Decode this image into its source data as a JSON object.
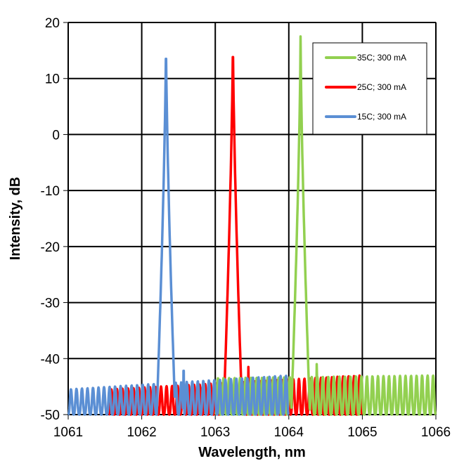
{
  "chart_data": {
    "type": "line",
    "title": "",
    "xlabel": "Wavelength, nm",
    "ylabel": "Intensity, dB",
    "xlim": [
      1061,
      1066
    ],
    "ylim": [
      -50,
      20
    ],
    "xticks": [
      1061,
      1062,
      1063,
      1064,
      1065,
      1066
    ],
    "yticks": [
      -50,
      -40,
      -30,
      -20,
      -10,
      0,
      10,
      20
    ],
    "grid": true,
    "legend_position": "top-right",
    "series": [
      {
        "name": "35C; 300 mA",
        "color": "#92d050",
        "peak_wavelength": 1064.16,
        "peak_db": 17.5,
        "side_mode_wavelength": 1064.38,
        "side_mode_db": -41,
        "noise_range": [
          1063.0,
          1066.0
        ],
        "noise_peak_db": [
          -43.5,
          -43
        ],
        "ripple_period_nm": 0.075
      },
      {
        "name": "25C; 300 mA",
        "color": "#ff0000",
        "peak_wavelength": 1063.24,
        "peak_db": 17.5,
        "side_mode_wavelength": 1063.45,
        "side_mode_db": -41.5,
        "noise_range": [
          1061.55,
          1065.0
        ],
        "noise_peak_db": [
          -45.5,
          -43
        ],
        "ripple_period_nm": 0.075
      },
      {
        "name": "15C; 300 mA",
        "color": "#5b8fd4",
        "peak_wavelength": 1062.33,
        "peak_db": 17.2,
        "side_mode_wavelength": 1062.57,
        "side_mode_db": -39,
        "noise_range": [
          1061.0,
          1064.0
        ],
        "noise_peak_db": [
          -45.5,
          -43
        ],
        "ripple_period_nm": 0.075
      }
    ]
  }
}
